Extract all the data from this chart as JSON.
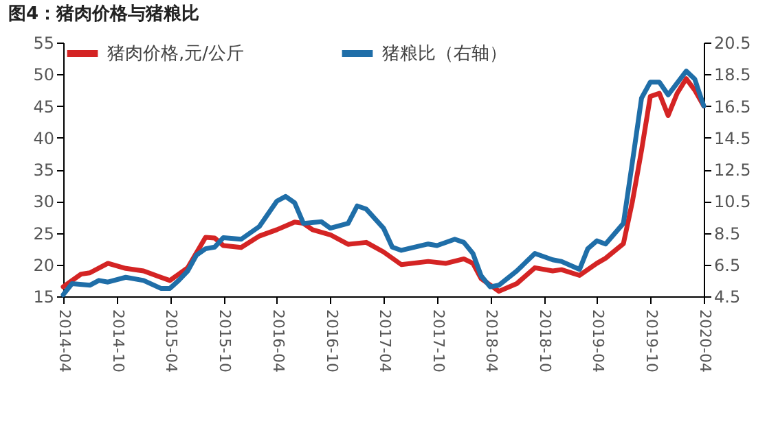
{
  "chart_data": {
    "type": "line",
    "title": "图4：猪肉价格与猪粮比",
    "xlim": [
      "2014-04",
      "2020-04"
    ],
    "xticks": [
      "2014-04",
      "2014-10",
      "2015-04",
      "2015-10",
      "2016-04",
      "2016-10",
      "2017-04",
      "2017-10",
      "2018-04",
      "2018-10",
      "2019-04",
      "2019-10",
      "2020-04"
    ],
    "ylim": [
      15,
      55
    ],
    "yticks": [
      15,
      20,
      25,
      30,
      35,
      40,
      45,
      50,
      55
    ],
    "y2lim": [
      4.5,
      20.5
    ],
    "y2ticks": [
      4.5,
      6.5,
      8.5,
      10.5,
      12.5,
      14.5,
      16.5,
      18.5,
      20.5
    ],
    "grid": false,
    "legend": "top",
    "line_style": "solid",
    "marker": "none",
    "series": [
      {
        "name": "猪肉价格,元/公斤",
        "color": "#d42424",
        "x": [
          "2014-04",
          "2014-06",
          "2014-07",
          "2014-09",
          "2014-11",
          "2015-01",
          "2015-03",
          "2015-04",
          "2015-06",
          "2015-08",
          "2015-09",
          "2015-10",
          "2015-12",
          "2016-02",
          "2016-04",
          "2016-06",
          "2016-07",
          "2016-08",
          "2016-10",
          "2016-12",
          "2017-02",
          "2017-04",
          "2017-06",
          "2017-09",
          "2017-11",
          "2018-01",
          "2018-02",
          "2018-03",
          "2018-05",
          "2018-07",
          "2018-09",
          "2018-11",
          "2018-12",
          "2019-02",
          "2019-04",
          "2019-05",
          "2019-07",
          "2019-08",
          "2019-09",
          "2019-10",
          "2019-11",
          "2019-12",
          "2020-01",
          "2020-02",
          "2020-03",
          "2020-04"
        ],
        "values": [
          16.5,
          18.5,
          18.7,
          20.2,
          19.4,
          19.0,
          18.0,
          17.5,
          19.5,
          24.3,
          24.2,
          23.0,
          22.7,
          24.5,
          25.5,
          26.7,
          26.5,
          25.5,
          24.7,
          23.2,
          23.5,
          22.0,
          20.0,
          20.5,
          20.2,
          20.9,
          20.2,
          17.8,
          15.8,
          17.0,
          19.5,
          19.0,
          19.2,
          18.3,
          20.2,
          21.0,
          23.3,
          30.0,
          38.0,
          46.5,
          47.0,
          43.5,
          47.0,
          49.3,
          47.5,
          45.0
        ]
      },
      {
        "name": "猪粮比（右轴）",
        "color": "#1f6ea8",
        "axis": "y2",
        "x": [
          "2014-04",
          "2014-05",
          "2014-07",
          "2014-08",
          "2014-09",
          "2014-11",
          "2015-01",
          "2015-03",
          "2015-04",
          "2015-05",
          "2015-06",
          "2015-07",
          "2015-08",
          "2015-09",
          "2015-10",
          "2015-12",
          "2016-02",
          "2016-04",
          "2016-05",
          "2016-06",
          "2016-07",
          "2016-09",
          "2016-10",
          "2016-12",
          "2017-01",
          "2017-02",
          "2017-04",
          "2017-05",
          "2017-06",
          "2017-09",
          "2017-10",
          "2017-12",
          "2018-01",
          "2018-02",
          "2018-03",
          "2018-04",
          "2018-05",
          "2018-07",
          "2018-09",
          "2018-11",
          "2018-12",
          "2019-02",
          "2019-03",
          "2019-04",
          "2019-05",
          "2019-07",
          "2019-08",
          "2019-09",
          "2019-10",
          "2019-11",
          "2019-12",
          "2020-02",
          "2020-03",
          "2020-04"
        ],
        "values": [
          4.6,
          5.3,
          5.2,
          5.5,
          5.4,
          5.7,
          5.5,
          5.0,
          5.0,
          5.5,
          6.1,
          7.1,
          7.5,
          7.6,
          8.2,
          8.1,
          8.9,
          10.5,
          10.8,
          10.4,
          9.1,
          9.2,
          8.8,
          9.1,
          10.2,
          10.0,
          8.8,
          7.6,
          7.4,
          7.8,
          7.7,
          8.1,
          7.9,
          7.2,
          5.8,
          5.1,
          5.2,
          6.1,
          7.2,
          6.8,
          6.7,
          6.2,
          7.5,
          8.0,
          7.8,
          9.1,
          13.0,
          17.0,
          18.0,
          18.0,
          17.2,
          18.7,
          18.2,
          16.5
        ]
      }
    ]
  }
}
